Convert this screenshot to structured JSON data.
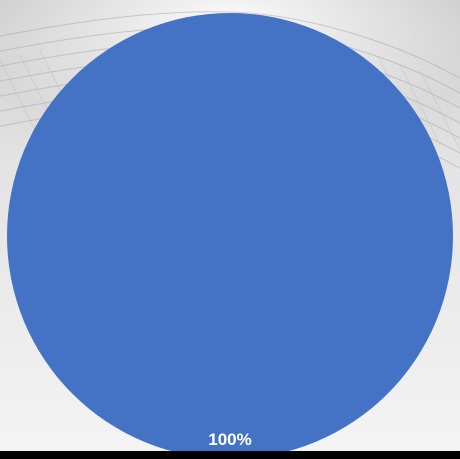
{
  "colors": {
    "slice": "#4472c4",
    "label": "#ffffff"
  },
  "chart_data": {
    "type": "pie",
    "categories": [
      ""
    ],
    "values": [
      100
    ],
    "data_labels": [
      "100%"
    ],
    "legend": "none"
  }
}
